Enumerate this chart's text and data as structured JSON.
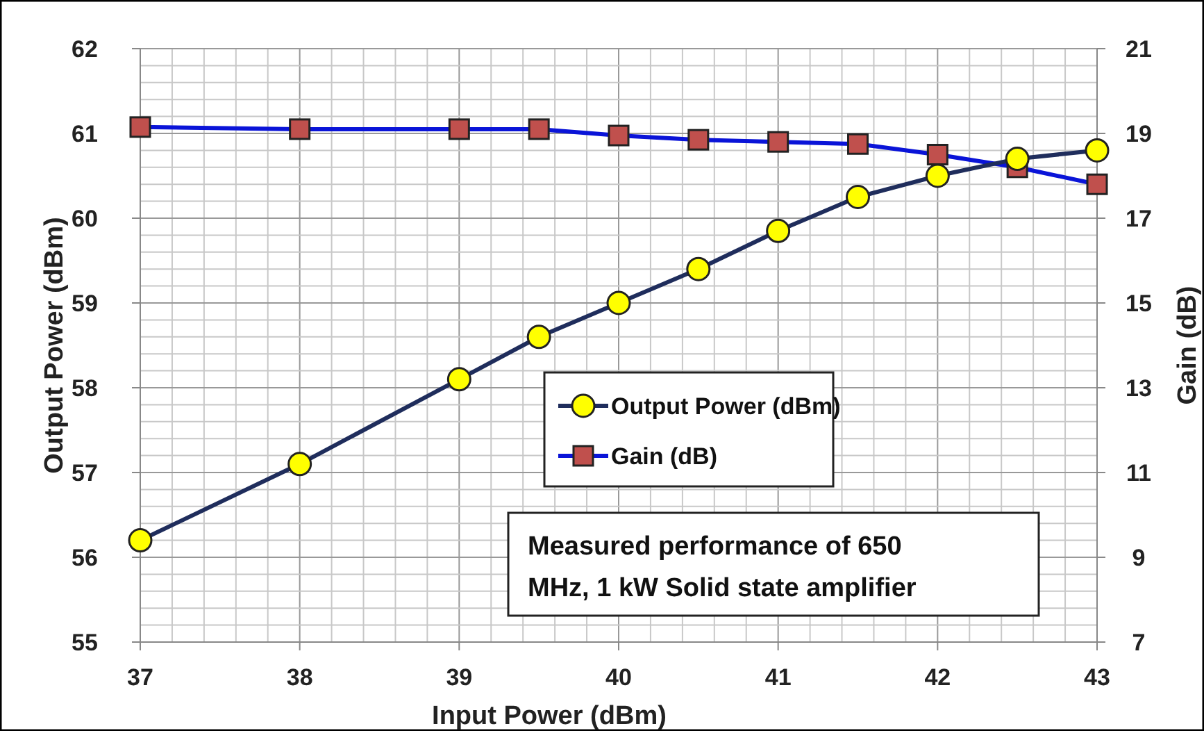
{
  "chart_data": {
    "type": "line",
    "xlabel": "Input Power (dBm)",
    "ylabel": "Output Power (dBm)",
    "y2label": "Gain (dB)",
    "x": [
      37,
      38,
      39,
      39.5,
      40,
      40.5,
      41,
      41.5,
      42,
      42.5,
      43
    ],
    "series": [
      {
        "name": "Output Power (dBm)",
        "color": "#ffff00",
        "marker": "circle",
        "values": [
          56.2,
          57.1,
          58.1,
          58.6,
          59.0,
          59.4,
          59.85,
          60.25,
          60.5,
          60.7,
          60.8
        ]
      },
      {
        "name": "Gain (dB)",
        "color": "#c0504d",
        "marker": "square",
        "axis": "y2",
        "values": [
          19.15,
          19.1,
          19.1,
          19.1,
          18.95,
          18.85,
          18.8,
          18.75,
          18.5,
          18.2,
          17.8
        ]
      }
    ],
    "xlim": [
      37,
      43
    ],
    "ylim": [
      55,
      62
    ],
    "y2lim": [
      7,
      21
    ],
    "xticks": [
      37,
      {
        "value": 37.2,
        "label": null
      },
      {
        "value": 37.4,
        "label": null
      },
      {
        "value": 37.6,
        "label": null
      },
      {
        "value": 37.8,
        "label": null
      },
      38,
      {
        "value": 38.2,
        "label": null
      },
      {
        "value": 38.4,
        "label": null
      },
      {
        "value": 38.6,
        "label": null
      },
      {
        "value": 38.8,
        "label": null
      },
      39,
      {
        "value": 39.2,
        "label": null
      },
      {
        "value": 39.4,
        "label": null
      },
      {
        "value": 39.6,
        "label": null
      },
      {
        "value": 39.8,
        "label": null
      },
      40,
      {
        "value": 40.2,
        "label": null
      },
      {
        "value": 40.4,
        "label": null
      },
      {
        "value": 40.6,
        "label": null
      },
      {
        "value": 40.8,
        "label": null
      },
      41,
      {
        "value": 41.2,
        "label": null
      },
      {
        "value": 41.4,
        "label": null
      },
      {
        "value": 41.6,
        "label": null
      },
      {
        "value": 41.8,
        "label": null
      },
      42,
      {
        "value": 42.2,
        "label": null
      },
      {
        "value": 42.4,
        "label": null
      },
      {
        "value": 42.6,
        "label": null
      },
      {
        "value": 42.8,
        "label": null
      },
      43
    ],
    "yticks": [
      55,
      {
        "value": 55.2,
        "label": null
      },
      {
        "value": 55.4,
        "label": null
      },
      {
        "value": 55.6,
        "label": null
      },
      {
        "value": 55.8,
        "label": null
      },
      56,
      {
        "value": 56.2,
        "label": null
      },
      {
        "value": 56.4,
        "label": null
      },
      {
        "value": 56.6,
        "label": null
      },
      {
        "value": 56.8,
        "label": null
      },
      57,
      {
        "value": 57.2,
        "label": null
      },
      {
        "value": 57.4,
        "label": null
      },
      {
        "value": 57.6,
        "label": null
      },
      {
        "value": 57.8,
        "label": null
      },
      58,
      {
        "value": 58.2,
        "label": null
      },
      {
        "value": 58.4,
        "label": null
      },
      {
        "value": 58.6,
        "label": null
      },
      {
        "value": 58.8,
        "label": null
      },
      59,
      {
        "value": 59.2,
        "label": null
      },
      {
        "value": 59.4,
        "label": null
      },
      {
        "value": 59.6,
        "label": null
      },
      {
        "value": 59.8,
        "label": null
      },
      60,
      {
        "value": 60.2,
        "label": null
      },
      {
        "value": 60.4,
        "label": null
      },
      {
        "value": 60.6,
        "label": null
      },
      {
        "value": 60.8,
        "label": null
      },
      61,
      {
        "value": 61.2,
        "label": null
      },
      {
        "value": 61.4,
        "label": null
      },
      {
        "value": 61.6,
        "label": null
      },
      {
        "value": 61.8,
        "label": null
      },
      62
    ],
    "y2ticks": [
      7,
      9,
      11,
      13,
      15,
      17,
      19,
      21
    ],
    "grid": true,
    "legend": "right",
    "line_style": "solid",
    "annotations": [
      "Measured performance of 650 MHz, 1 kW Solid state amplifier"
    ]
  }
}
